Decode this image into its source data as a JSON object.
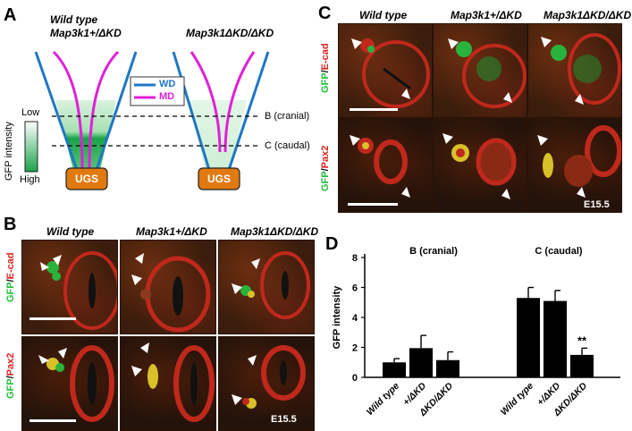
{
  "panel_a": {
    "label": "A",
    "title_left_line1": "Wild type",
    "title_left_line2": "Map3k1+/ΔKD",
    "title_right": "Map3k1ΔKD/ΔKD",
    "legend_wd": "WD",
    "legend_md": "MD",
    "colorbar_low": "Low",
    "colorbar_high": "High",
    "colorbar_axis": "GFP intensity",
    "line_b": "B (cranial)",
    "line_c": "C (caudal)",
    "ugs": "UGS",
    "colors": {
      "wd": "#1f77c4",
      "md": "#e020d8",
      "ugs": "#e07a10",
      "gfp": "#1aa34a"
    }
  },
  "panel_b": {
    "label": "B",
    "col_titles": [
      "Wild type",
      "Map3k1+/ΔKD",
      "Map3k1ΔKD/ΔKD"
    ],
    "row1_side": {
      "g": "GFP",
      "sep": "/",
      "r": "E-cad"
    },
    "row2_side": {
      "g": "GFP",
      "sep": "/",
      "r": "Pax2"
    },
    "stage": "E15.5"
  },
  "panel_c": {
    "label": "C",
    "col_titles": [
      "Wild type",
      "Map3k1+/ΔKD",
      "Map3k1ΔKD/ΔKD"
    ],
    "row1_side": {
      "g": "GFP",
      "sep": "/",
      "r": "E-cad"
    },
    "row2_side": {
      "g": "GFP",
      "sep": "/",
      "r": "Pax2"
    },
    "stage": "E15.5"
  },
  "panel_d": {
    "label": "D"
  },
  "chart_data": {
    "type": "bar",
    "ylabel": "GFP intensity",
    "ylim": [
      0,
      8
    ],
    "yticks": [
      0,
      2,
      4,
      6,
      8
    ],
    "groups": [
      {
        "title": "B (cranial)",
        "categories": [
          "Wild type",
          "+/ΔKD",
          "ΔKD/ΔKD"
        ],
        "values": [
          1.0,
          1.95,
          1.15
        ],
        "errors": [
          0.25,
          0.85,
          0.55
        ]
      },
      {
        "title": "C (caudal)",
        "categories": [
          "Wild type",
          "+/ΔKD",
          "ΔKD/ΔKD"
        ],
        "values": [
          5.3,
          5.1,
          1.5
        ],
        "errors": [
          0.7,
          0.7,
          0.45
        ]
      }
    ],
    "annotation": "**",
    "bar_color": "#000000"
  }
}
